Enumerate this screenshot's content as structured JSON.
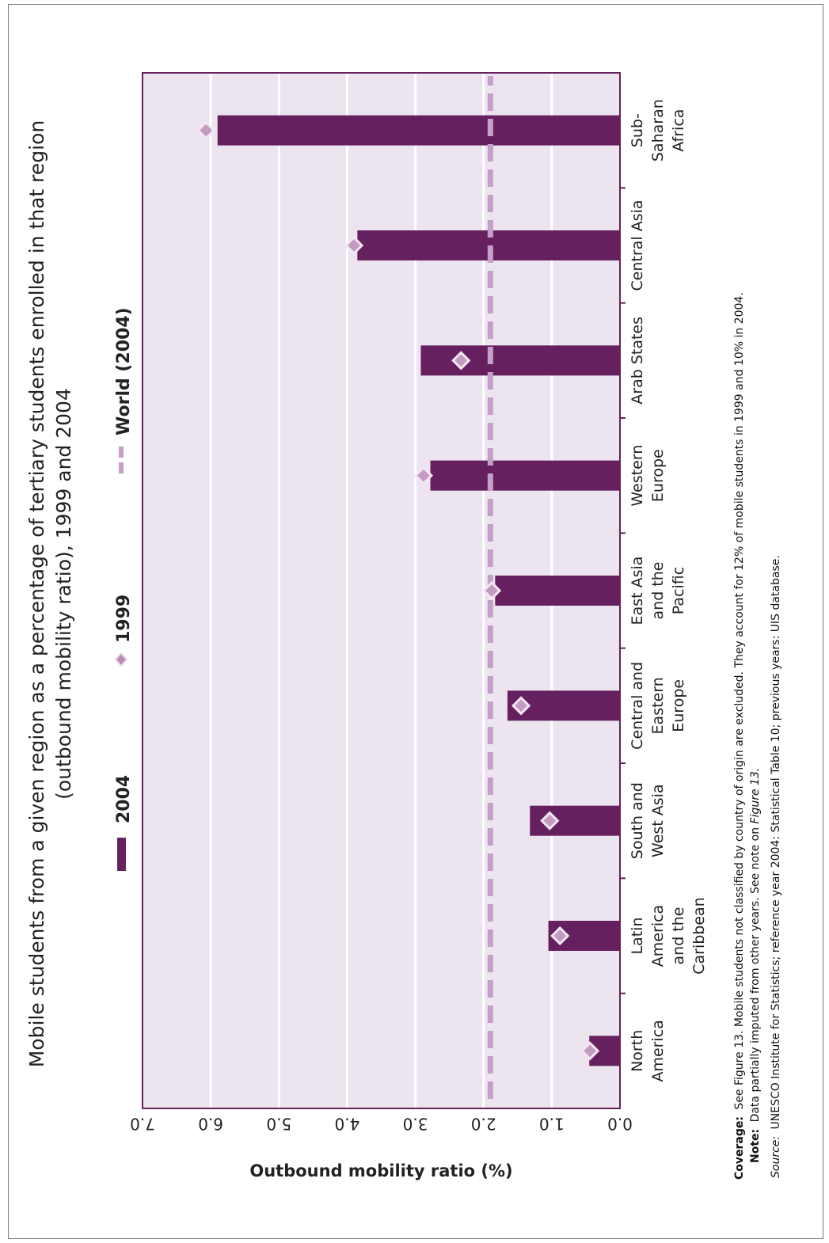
{
  "chart_data": {
    "type": "bar",
    "orientation": "rotated-90-ccw",
    "title_lines": [
      "Mobile students from a given region as a percentage of tertiary students enrolled in that region",
      "(outbound mobility ratio), 1999 and 2004"
    ],
    "ylabel": "Outbound mobility ratio (%)",
    "ylim": [
      0,
      7
    ],
    "yticks": [
      "0.0",
      "1.0",
      "2.0",
      "3.0",
      "4.0",
      "5.0",
      "6.0",
      "7.0"
    ],
    "grid": true,
    "categories": [
      [
        "North",
        "America"
      ],
      [
        "Latin",
        "America",
        "and the",
        "Caribbean"
      ],
      [
        "South and",
        "West Asia"
      ],
      [
        "Central and",
        "Eastern",
        "Europe"
      ],
      [
        "East Asia",
        "and the",
        "Pacific"
      ],
      [
        "Western",
        "Europe"
      ],
      [
        "Arab States"
      ],
      [
        "Central Asia"
      ],
      [
        "Sub-",
        "Saharan",
        "Africa"
      ]
    ],
    "series": [
      {
        "name": "2004",
        "type": "bar",
        "color": "#66205f",
        "values": [
          0.45,
          1.05,
          1.32,
          1.65,
          1.83,
          2.78,
          2.92,
          3.85,
          5.9
        ]
      },
      {
        "name": "1999",
        "type": "marker",
        "marker": "diamond",
        "color": "#c39ac0",
        "values": [
          0.44,
          0.88,
          1.03,
          1.45,
          1.88,
          2.88,
          2.33,
          3.9,
          6.07
        ]
      },
      {
        "name": "World (2004)",
        "type": "reference-line",
        "style": "dashed",
        "color": "#c4a0c8",
        "value": 1.9
      }
    ],
    "legend_position": "top"
  },
  "colors": {
    "plot_background": "#ece4ee",
    "plot_border": "#66205f",
    "gridline": "#ffffff"
  },
  "notes": [
    {
      "label": "Coverage:",
      "text": "See Figure 13. Mobile students not classified by country of origin are excluded. They account for 12% of mobile students in 1999 and 10% in 2004."
    },
    {
      "label": "Note:",
      "text": "Data partially imputed from other years. See note on ",
      "italic_ref": "Figure 13."
    },
    {
      "label": "Source:",
      "text": "UNESCO Institute for Statistics; reference year 2004: Statistical Table 10; previous years: UIS database."
    }
  ]
}
